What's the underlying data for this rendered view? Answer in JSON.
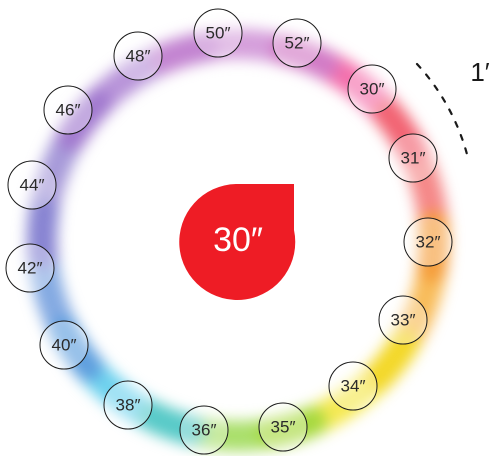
{
  "center": {
    "value": "30″",
    "color": "#ee1c25"
  },
  "arc": {
    "label": "1′"
  },
  "ring": {
    "colors": [
      "#f04090",
      "#f26060",
      "#f5a623",
      "#f2e21a",
      "#8ed43a",
      "#3ec3e8",
      "#5b8ed8",
      "#8a78cc",
      "#a070cc",
      "#c77fcf"
    ]
  },
  "positions": [
    {
      "label": "50″"
    },
    {
      "label": "52″"
    },
    {
      "label": "30″"
    },
    {
      "label": "31″"
    },
    {
      "label": "32″"
    },
    {
      "label": "33″"
    },
    {
      "label": "34″"
    },
    {
      "label": "35″"
    },
    {
      "label": "36″"
    },
    {
      "label": "38″"
    },
    {
      "label": "40″"
    },
    {
      "label": "42″"
    },
    {
      "label": "44″"
    },
    {
      "label": "46″"
    },
    {
      "label": "48″"
    }
  ]
}
